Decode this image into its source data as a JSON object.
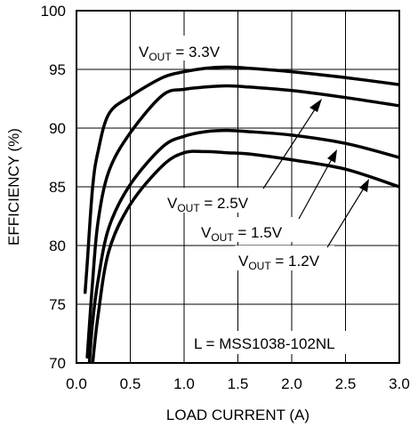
{
  "chart_data": {
    "type": "line",
    "title": "",
    "xlabel": "LOAD CURRENT (A)",
    "ylabel": "EFFICIENCY (%)",
    "xlim": [
      0.0,
      3.0
    ],
    "ylim": [
      70,
      100
    ],
    "x_ticks": [
      "0.0",
      "0.5",
      "1.0",
      "1.5",
      "2.0",
      "2.5",
      "3.0"
    ],
    "y_ticks": [
      "70",
      "75",
      "80",
      "85",
      "90",
      "95",
      "100"
    ],
    "grid": true,
    "legend": "none",
    "series": [
      {
        "name": "VOUT = 3.3V",
        "x": [
          0.08,
          0.1,
          0.15,
          0.2,
          0.3,
          0.5,
          0.8,
          1.0,
          1.2,
          1.4,
          1.6,
          2.0,
          2.5,
          3.0
        ],
        "y": [
          76,
          78.5,
          85,
          88,
          91.2,
          92.7,
          94.3,
          94.8,
          95.1,
          95.2,
          95.1,
          94.8,
          94.3,
          93.7
        ]
      },
      {
        "name": "VOUT = 2.5V",
        "x": [
          0.1,
          0.15,
          0.2,
          0.3,
          0.5,
          0.8,
          1.0,
          1.2,
          1.4,
          1.6,
          2.0,
          2.5,
          3.0
        ],
        "y": [
          70.5,
          77,
          82,
          86.3,
          89.6,
          92.8,
          93.3,
          93.5,
          93.6,
          93.5,
          93.2,
          92.6,
          91.9
        ]
      },
      {
        "name": "VOUT = 1.5V",
        "x": [
          0.12,
          0.15,
          0.2,
          0.3,
          0.5,
          0.8,
          1.0,
          1.2,
          1.4,
          1.6,
          2.0,
          2.5,
          3.0
        ],
        "y": [
          70,
          73.5,
          77,
          81.5,
          85.2,
          88.4,
          89.3,
          89.7,
          89.8,
          89.7,
          89.4,
          88.7,
          87.5
        ]
      },
      {
        "name": "VOUT = 1.2V",
        "x": [
          0.15,
          0.2,
          0.3,
          0.5,
          0.8,
          1.0,
          1.2,
          1.4,
          1.6,
          2.0,
          2.5,
          3.0
        ],
        "y": [
          70,
          74,
          79.5,
          83.5,
          86.8,
          87.9,
          88.0,
          87.9,
          87.8,
          87.3,
          86.5,
          85.0
        ]
      }
    ],
    "labels": [
      {
        "main": "V",
        "sub": "OUT",
        "rest": " = 3.3V"
      },
      {
        "main": "V",
        "sub": "OUT",
        "rest": " = 2.5V"
      },
      {
        "main": "V",
        "sub": "OUT",
        "rest": " = 1.5V"
      },
      {
        "main": "V",
        "sub": "OUT",
        "rest": " = 1.2V"
      }
    ],
    "note": "L = MSS1038-102NL"
  }
}
